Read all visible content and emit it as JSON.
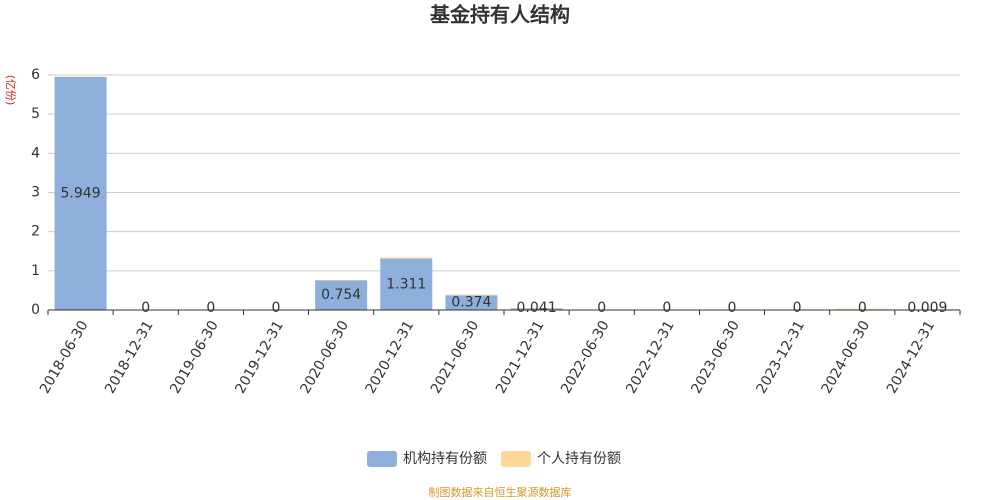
{
  "chart_data": {
    "type": "stacked_bar",
    "title": "基金持有人结构",
    "y_label": "(亿份)",
    "categories": [
      "2018-06-30",
      "2018-12-31",
      "2019-06-30",
      "2019-12-31",
      "2020-06-30",
      "2020-12-31",
      "2021-06-30",
      "2021-12-31",
      "2022-06-30",
      "2022-12-31",
      "2023-06-30",
      "2023-12-31",
      "2024-06-30",
      "2024-12-31"
    ],
    "series": [
      {
        "name": "机构持有份额",
        "color": "#8eaedb",
        "values": [
          5.949,
          0,
          0,
          0,
          0.754,
          1.311,
          0.374,
          0.041,
          0,
          0,
          0,
          0,
          0,
          0.009
        ]
      },
      {
        "name": "个人持有份额",
        "color": "#fdd898",
        "values": [
          0.01,
          0,
          0,
          0,
          0.01,
          0.03,
          0.02,
          0.01,
          0.005,
          0,
          0,
          0,
          0.03,
          0.01
        ]
      }
    ],
    "ylim": [
      0,
      6
    ],
    "yticks": [
      0,
      1,
      2,
      3,
      4,
      5,
      6
    ],
    "grid": true,
    "source": "制图数据来自恒生聚源数据库"
  }
}
